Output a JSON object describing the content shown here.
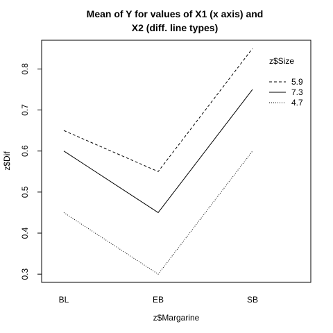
{
  "chart_data": {
    "type": "line",
    "title_lines": [
      "Mean of Y for values of X1 (x axis) and",
      "X2 (diff. line types)"
    ],
    "xlabel": "z$Margarine",
    "ylabel": "z$Dif",
    "categories": [
      "BL",
      "EB",
      "SB"
    ],
    "ylim": [
      0.28,
      0.87
    ],
    "yticks": [
      "0.3",
      "0.4",
      "0.5",
      "0.6",
      "0.7",
      "0.8"
    ],
    "legend": {
      "title": "z$Size",
      "position": "top-right",
      "entries": [
        "5.9",
        "7.3",
        "4.7"
      ]
    },
    "series": [
      {
        "name": "5.9",
        "line_style": "dashed",
        "values": [
          0.65,
          0.55,
          0.85
        ]
      },
      {
        "name": "7.3",
        "line_style": "solid",
        "values": [
          0.6,
          0.45,
          0.75
        ]
      },
      {
        "name": "4.7",
        "line_style": "dotted",
        "values": [
          0.45,
          0.3,
          0.6
        ]
      }
    ]
  }
}
